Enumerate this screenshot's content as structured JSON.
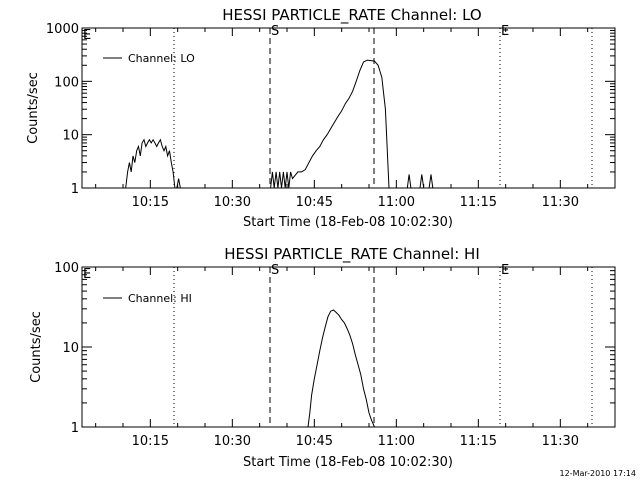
{
  "footer": {
    "timestamp": "12-Mar-2010 17:14"
  },
  "style": {
    "line_color": "#000000",
    "background": "#ffffff"
  },
  "chart_data": [
    {
      "type": "line",
      "title": "HESSI PARTICLE_RATE Channel: LO",
      "xlabel": "Start Time (18-Feb-08 10:02:30)",
      "ylabel": "Counts/sec",
      "yscale": "log",
      "ylim": [
        1,
        1000
      ],
      "xlim": [
        "10:02:30",
        "11:40:00"
      ],
      "x_ticks": [
        "10:15",
        "10:30",
        "10:45",
        "11:00",
        "11:15",
        "11:30"
      ],
      "y_ticks": [
        "1",
        "10",
        "100",
        "1000"
      ],
      "grid": false,
      "legend": {
        "position": "top-left"
      },
      "series": [
        {
          "name": "Channel: LO",
          "x": [
            "10:10:30",
            "10:10:50",
            "10:11:10",
            "10:11:30",
            "10:11:50",
            "10:12:10",
            "10:12:30",
            "10:12:50",
            "10:13:10",
            "10:13:30",
            "10:13:50",
            "10:14:10",
            "10:14:30",
            "10:14:50",
            "10:15:10",
            "10:15:30",
            "10:15:50",
            "10:16:10",
            "10:16:30",
            "10:16:50",
            "10:17:10",
            "10:17:30",
            "10:17:50",
            "10:18:10",
            "10:18:30",
            "10:18:50",
            "10:19:10",
            "10:19:30",
            "10:19:50",
            "10:20:10",
            "10:20:30",
            "10:20:50",
            "10:37:00",
            "10:37:20",
            "10:37:40",
            "10:38:00",
            "10:38:20",
            "10:38:40",
            "10:39:00",
            "10:39:20",
            "10:39:40",
            "10:40:00",
            "10:40:20",
            "10:40:40",
            "10:41:00",
            "10:42:00",
            "10:42:40",
            "10:43:20",
            "10:44:00",
            "10:44:40",
            "10:45:20",
            "10:46:00",
            "10:46:40",
            "10:47:20",
            "10:48:00",
            "10:48:40",
            "10:49:20",
            "10:50:00",
            "10:50:40",
            "10:51:20",
            "10:52:00",
            "10:52:40",
            "10:53:20",
            "10:54:00",
            "10:54:40",
            "10:55:20",
            "10:56:00",
            "10:56:40",
            "10:57:20",
            "10:58:00",
            "10:58:40",
            "11:02:00",
            "11:02:20",
            "11:02:40",
            "11:04:20",
            "11:04:40",
            "11:05:00",
            "11:06:00",
            "11:06:20",
            "11:06:40"
          ],
          "values": [
            1,
            2,
            3,
            2,
            4,
            3,
            5,
            6,
            4,
            7,
            8,
            6,
            7,
            8,
            7,
            8,
            7,
            6,
            7,
            8,
            6,
            5,
            6,
            4,
            5,
            3,
            2,
            1,
            1,
            1.5,
            1,
            1,
            1,
            2,
            1,
            2,
            1,
            2,
            1,
            2,
            1,
            2,
            1,
            2,
            1.5,
            2,
            2,
            2.2,
            3,
            4,
            5,
            6,
            8,
            10,
            13,
            17,
            22,
            28,
            38,
            48,
            65,
            100,
            160,
            230,
            250,
            245,
            240,
            200,
            120,
            30,
            1,
            1,
            1.8,
            1,
            1,
            1.8,
            1,
            1,
            1.8,
            1
          ]
        }
      ],
      "annotations": [
        "E",
        "S",
        "E"
      ]
    },
    {
      "type": "line",
      "title": "HESSI PARTICLE_RATE Channel: HI",
      "xlabel": "Start Time (18-Feb-08 10:02:30)",
      "ylabel": "Counts/sec",
      "yscale": "log",
      "ylim": [
        1,
        100
      ],
      "xlim": [
        "10:02:30",
        "11:40:00"
      ],
      "x_ticks": [
        "10:15",
        "10:30",
        "10:45",
        "11:00",
        "11:15",
        "11:30"
      ],
      "y_ticks": [
        "1",
        "10",
        "100"
      ],
      "grid": false,
      "legend": {
        "position": "top-left"
      },
      "series": [
        {
          "name": "Channel: HI",
          "x": [
            "10:43:50",
            "10:44:10",
            "10:44:30",
            "10:45:00",
            "10:45:30",
            "10:46:00",
            "10:46:30",
            "10:47:00",
            "10:47:30",
            "10:48:00",
            "10:48:30",
            "10:49:00",
            "10:49:30",
            "10:50:00",
            "10:50:30",
            "10:51:00",
            "10:51:30",
            "10:52:00",
            "10:52:30",
            "10:53:00",
            "10:53:30",
            "10:54:00",
            "10:54:30",
            "10:55:00",
            "10:55:30",
            "10:56:00"
          ],
          "values": [
            1,
            1.5,
            2.5,
            4,
            6,
            9,
            13,
            18,
            24,
            28,
            29,
            27,
            25,
            22,
            20,
            17,
            14,
            11,
            8,
            6,
            4.5,
            3,
            2.2,
            1.5,
            1.2,
            1
          ]
        }
      ],
      "annotations": [
        "E",
        "S",
        "E"
      ]
    }
  ]
}
